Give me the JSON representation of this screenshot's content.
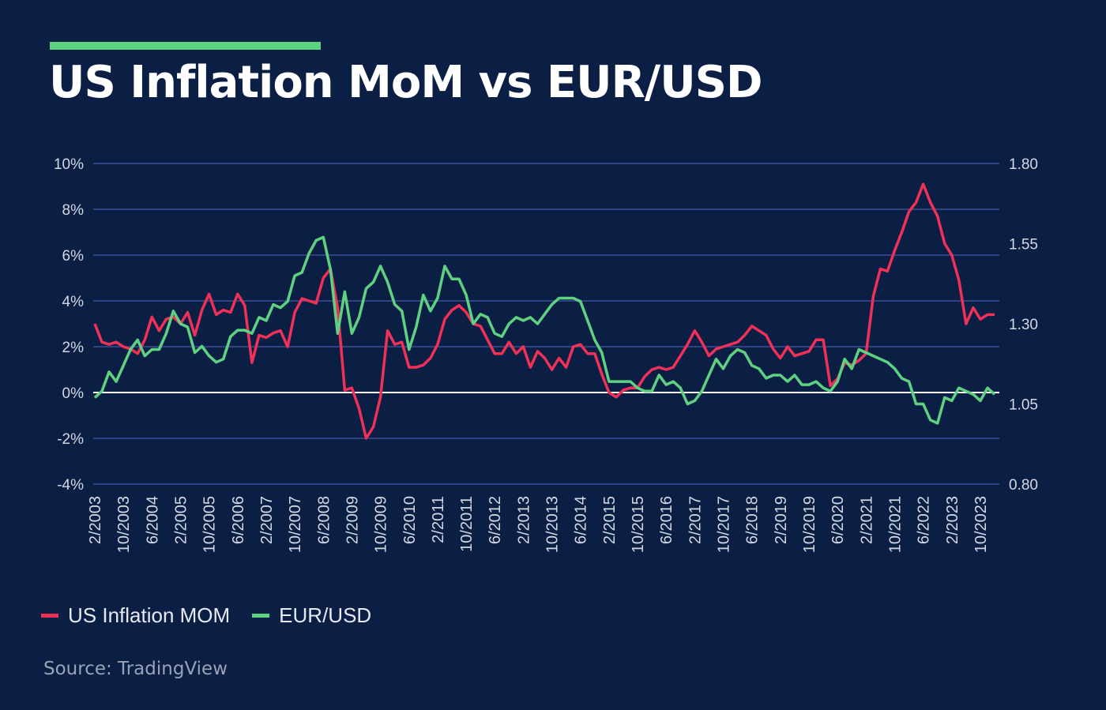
{
  "title": "US Inflation MoM vs EUR/USD",
  "source": "Source: TradingView",
  "colors": {
    "background": "#0b1f45",
    "accent": "#5fd282",
    "inflation": "#ef3158",
    "eurusd": "#5fd282",
    "grid": "#3c4f96",
    "zero_line": "#ffffff"
  },
  "chart_data": {
    "type": "line",
    "x_tick_labels": [
      "2/2003",
      "10/2003",
      "6/2004",
      "2/2005",
      "10/2005",
      "6/2006",
      "2/2007",
      "10/2007",
      "6/2008",
      "2/2009",
      "10/2009",
      "6/2010",
      "2/2011",
      "10/2011",
      "6/2012",
      "2/2013",
      "10/2013",
      "6/2014",
      "2/2015",
      "10/2015",
      "6/2016",
      "2/2017",
      "10/2017",
      "6/2018",
      "2/2019",
      "10/2019",
      "6/2020",
      "2/2021",
      "10/2021",
      "6/2022",
      "2/2023",
      "10/2023"
    ],
    "x_start": "2/2003",
    "x_step_months": 2,
    "y_left": {
      "range": [
        -4,
        10
      ],
      "ticks": [
        "-4%",
        "-2%",
        "0%",
        "2%",
        "4%",
        "6%",
        "8%",
        "10%"
      ],
      "tick_values": [
        -4,
        -2,
        0,
        2,
        4,
        6,
        8,
        10
      ]
    },
    "y_right": {
      "range": [
        0.8,
        1.8
      ],
      "ticks": [
        "0.80",
        "1.05",
        "1.30",
        "1.55",
        "1.80"
      ],
      "tick_values": [
        0.8,
        1.05,
        1.3,
        1.55,
        1.8
      ]
    },
    "grid": true,
    "legend": "bottom-left",
    "series": [
      {
        "name": "US Inflation MOM",
        "axis": "left",
        "color": "#ef3158",
        "values": [
          3.0,
          2.2,
          2.1,
          2.2,
          2.0,
          1.9,
          1.7,
          2.3,
          3.3,
          2.7,
          3.2,
          3.3,
          3.0,
          3.5,
          2.5,
          3.6,
          4.3,
          3.4,
          3.6,
          3.5,
          4.3,
          3.8,
          1.3,
          2.5,
          2.4,
          2.6,
          2.7,
          2.0,
          3.5,
          4.1,
          4.0,
          3.9,
          5.0,
          5.4,
          3.7,
          0.1,
          0.2,
          -0.7,
          -2.0,
          -1.5,
          -0.2,
          2.7,
          2.1,
          2.2,
          1.1,
          1.1,
          1.2,
          1.5,
          2.1,
          3.2,
          3.6,
          3.8,
          3.5,
          3.0,
          2.9,
          2.3,
          1.7,
          1.7,
          2.2,
          1.7,
          2.0,
          1.1,
          1.8,
          1.5,
          1.0,
          1.5,
          1.1,
          2.0,
          2.1,
          1.7,
          1.7,
          0.8,
          0.0,
          -0.2,
          0.1,
          0.2,
          0.2,
          0.7,
          1.0,
          1.1,
          1.0,
          1.1,
          1.6,
          2.1,
          2.7,
          2.2,
          1.6,
          1.9,
          2.0,
          2.1,
          2.2,
          2.5,
          2.9,
          2.7,
          2.5,
          1.9,
          1.5,
          2.0,
          1.6,
          1.7,
          1.8,
          2.3,
          2.3,
          0.3,
          0.6,
          1.3,
          1.2,
          1.4,
          1.7,
          4.2,
          5.4,
          5.3,
          6.2,
          7.0,
          7.9,
          8.3,
          9.1,
          8.3,
          7.7,
          6.5,
          6.0,
          4.9,
          3.0,
          3.7,
          3.2,
          3.4,
          3.4
        ]
      },
      {
        "name": "EUR/USD",
        "axis": "right",
        "color": "#5fd282",
        "values": [
          1.07,
          1.09,
          1.15,
          1.12,
          1.17,
          1.22,
          1.25,
          1.2,
          1.22,
          1.22,
          1.27,
          1.34,
          1.3,
          1.29,
          1.21,
          1.23,
          1.2,
          1.18,
          1.19,
          1.26,
          1.28,
          1.28,
          1.27,
          1.32,
          1.31,
          1.36,
          1.35,
          1.37,
          1.45,
          1.46,
          1.52,
          1.56,
          1.57,
          1.47,
          1.27,
          1.4,
          1.27,
          1.32,
          1.41,
          1.43,
          1.48,
          1.43,
          1.36,
          1.34,
          1.22,
          1.29,
          1.39,
          1.34,
          1.38,
          1.48,
          1.44,
          1.44,
          1.39,
          1.3,
          1.33,
          1.32,
          1.27,
          1.26,
          1.3,
          1.32,
          1.31,
          1.32,
          1.3,
          1.33,
          1.36,
          1.38,
          1.38,
          1.38,
          1.37,
          1.31,
          1.25,
          1.21,
          1.12,
          1.12,
          1.12,
          1.12,
          1.1,
          1.09,
          1.09,
          1.14,
          1.11,
          1.12,
          1.1,
          1.05,
          1.06,
          1.09,
          1.14,
          1.19,
          1.16,
          1.2,
          1.22,
          1.21,
          1.17,
          1.16,
          1.13,
          1.14,
          1.14,
          1.12,
          1.14,
          1.11,
          1.11,
          1.12,
          1.1,
          1.09,
          1.12,
          1.19,
          1.16,
          1.22,
          1.21,
          1.2,
          1.19,
          1.18,
          1.16,
          1.13,
          1.12,
          1.05,
          1.05,
          1.0,
          0.99,
          1.07,
          1.06,
          1.1,
          1.09,
          1.08,
          1.06,
          1.1,
          1.08
        ]
      }
    ]
  }
}
